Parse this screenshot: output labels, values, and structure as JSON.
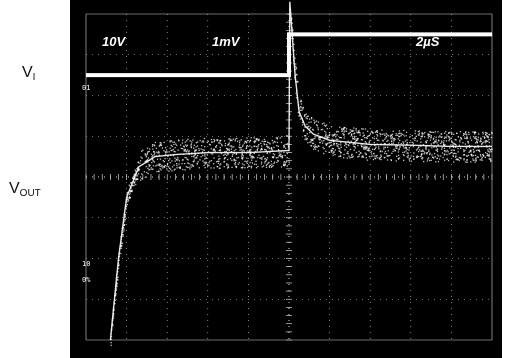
{
  "header": {
    "volts_per_div_ch1": "10V",
    "volts_per_div_ch2": "1mV",
    "time_per_div": "2µS"
  },
  "labels": {
    "vi": "V",
    "vi_sub": "I",
    "vout": "V",
    "vout_sub": "OUT"
  },
  "markers": {
    "upper": "01",
    "lower_top": "10",
    "lower_bottom": "0%"
  },
  "colors": {
    "screen": "#000000",
    "trace": "#ffffff",
    "grid": "#d8d8d8"
  },
  "chart_data": {
    "type": "line",
    "title": "",
    "grid": true,
    "x_range_divisions": [
      0,
      10
    ],
    "y_range_divisions": [
      -4,
      4
    ],
    "series": [
      {
        "name": "V_I",
        "x": [
          0,
          5,
          5,
          10
        ],
        "y": [
          2.5,
          2.5,
          3.5,
          3.5
        ]
      },
      {
        "name": "V_OUT",
        "x": [
          0.6,
          0.8,
          1.0,
          1.3,
          1.7,
          2.2,
          3.0,
          4.0,
          5.0,
          5.02,
          5.15,
          5.25,
          5.4,
          5.6,
          6.0,
          7.0,
          8.0,
          9.0,
          10.0
        ],
        "y": [
          -4.0,
          -2.0,
          -0.5,
          0.25,
          0.5,
          0.55,
          0.6,
          0.6,
          0.65,
          4.3,
          2.5,
          1.6,
          1.25,
          1.05,
          0.9,
          0.8,
          0.78,
          0.75,
          0.75
        ]
      }
    ]
  }
}
